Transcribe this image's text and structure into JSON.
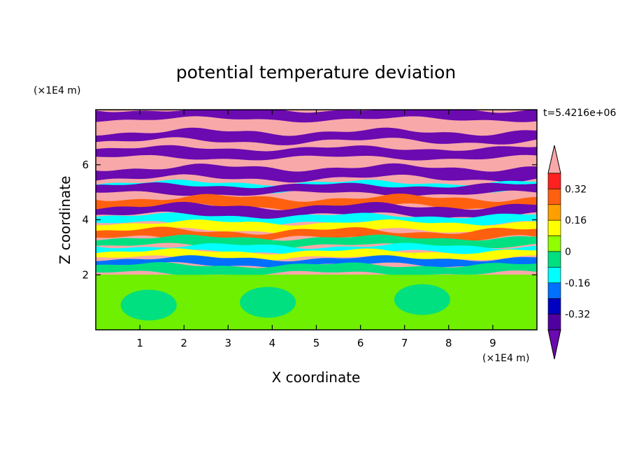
{
  "chart_data": {
    "type": "heatmap",
    "title": "potential temperature deviation",
    "xlabel": "X coordinate",
    "ylabel": "Z coordinate",
    "x_unit": "(×1E4 m)",
    "y_unit": "(×1E4 m)",
    "time_label": "t=5.4216e+06",
    "xlim": [
      0,
      10
    ],
    "ylim": [
      0,
      8
    ],
    "x_ticks": [
      "1",
      "2",
      "3",
      "4",
      "5",
      "6",
      "7",
      "8",
      "9"
    ],
    "y_ticks": [
      "2",
      "4",
      "6"
    ],
    "colorbar": {
      "levels": [
        -0.4,
        -0.32,
        -0.24,
        -0.16,
        -0.08,
        0,
        0.08,
        0.16,
        0.24,
        0.32,
        0.4
      ],
      "labels": [
        "0.32",
        "0.16",
        "0",
        "-0.16",
        "-0.32"
      ],
      "label_values": [
        0.32,
        0.16,
        0,
        -0.16,
        -0.32
      ],
      "colors": [
        "#ff2020",
        "#ff6010",
        "#ffa000",
        "#ffff00",
        "#90ff00",
        "#00e080",
        "#00ffff",
        "#0070ff",
        "#0000c0",
        "#5000a0"
      ],
      "over_color": "#f8a8a8",
      "under_color": "#6a0ab0",
      "extend": "both"
    },
    "field_description_colors": {
      "lower_layer": "#6ef000",
      "positive_band": "#f8a8a8",
      "negative_band": "#6a0ab0"
    }
  }
}
